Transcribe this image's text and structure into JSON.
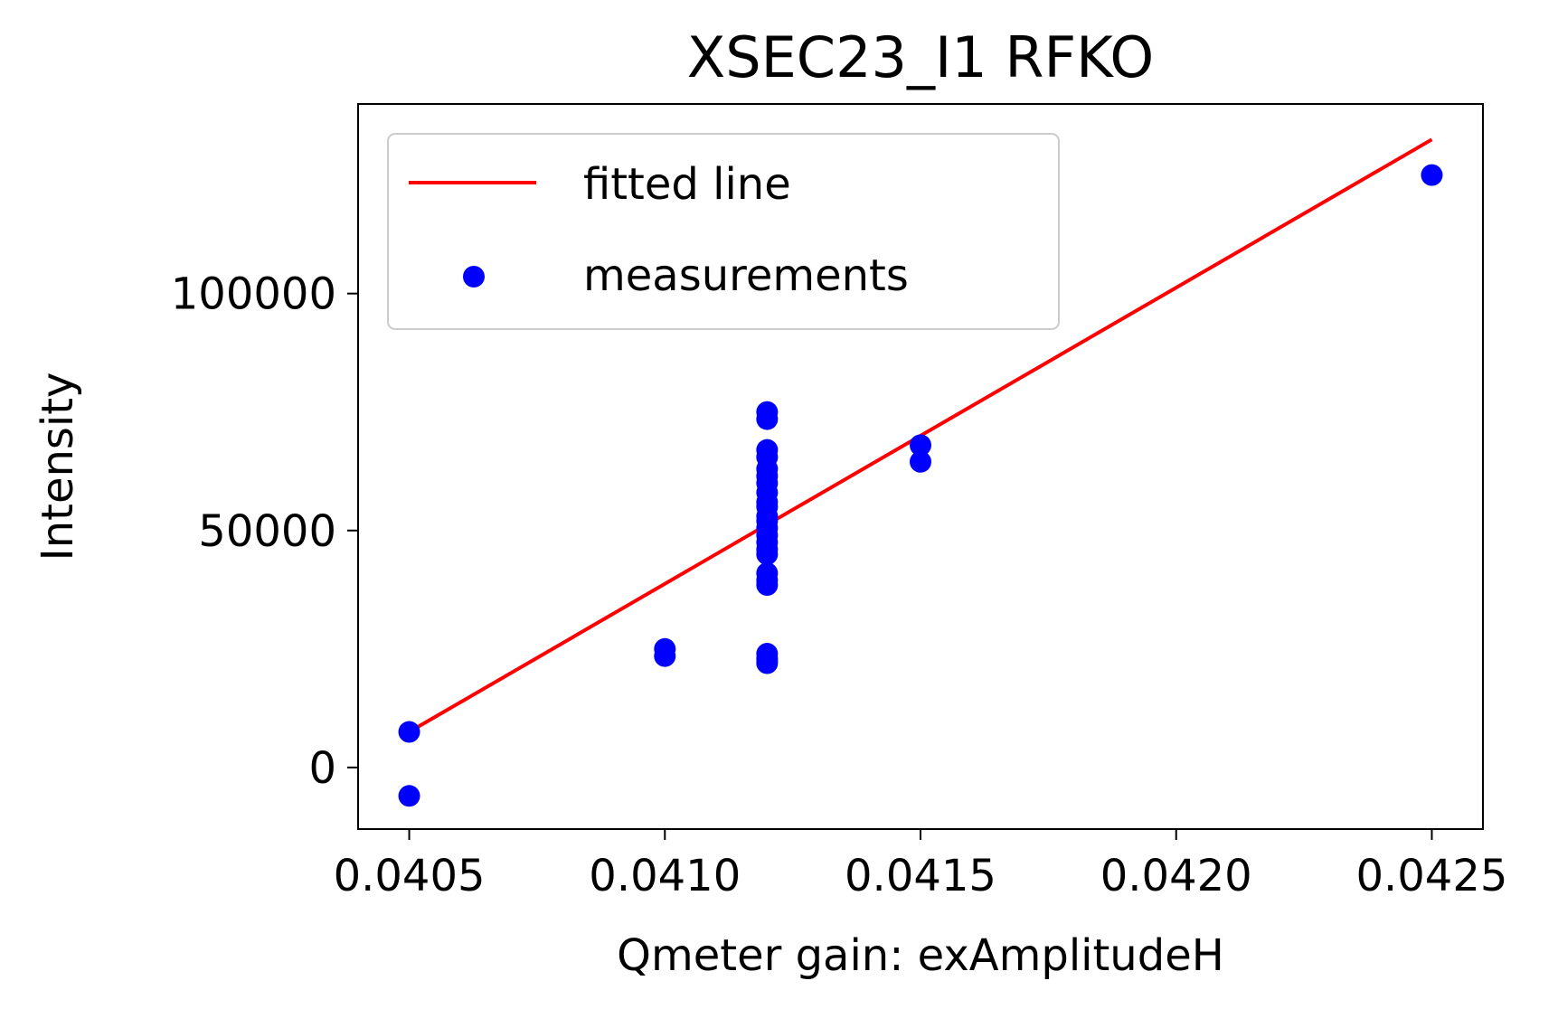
{
  "chart_data": {
    "type": "scatter",
    "title": "XSEC23_I1 RFKO",
    "xlabel": "Qmeter gain: exAmplitudeH",
    "ylabel": "Intensity",
    "xlim": [
      0.0404,
      0.0426
    ],
    "ylim": [
      -13000,
      140000
    ],
    "x_ticks": [
      {
        "value": 0.0405,
        "label": "0.0405"
      },
      {
        "value": 0.041,
        "label": "0.0410"
      },
      {
        "value": 0.0415,
        "label": "0.0415"
      },
      {
        "value": 0.042,
        "label": "0.0420"
      },
      {
        "value": 0.0425,
        "label": "0.0425"
      }
    ],
    "y_ticks": [
      {
        "value": 0,
        "label": "0"
      },
      {
        "value": 50000,
        "label": "50000"
      },
      {
        "value": 100000,
        "label": "100000"
      }
    ],
    "grid": false,
    "legend_position": "top-left",
    "series": [
      {
        "name": "fitted line",
        "kind": "line",
        "color": "#ff0000",
        "x": [
          0.0405,
          0.0425
        ],
        "y": [
          7500,
          132500
        ]
      },
      {
        "name": "measurements",
        "kind": "scatter",
        "color": "#0000ff",
        "x": [
          0.0405,
          0.0405,
          0.041,
          0.041,
          0.0412,
          0.0412,
          0.0412,
          0.0412,
          0.0412,
          0.0412,
          0.0412,
          0.0412,
          0.0412,
          0.0412,
          0.0412,
          0.0412,
          0.0412,
          0.0412,
          0.0412,
          0.0412,
          0.0412,
          0.0412,
          0.0412,
          0.0412,
          0.0412,
          0.0412,
          0.0412,
          0.0412,
          0.0415,
          0.0415,
          0.0425
        ],
        "y": [
          7500,
          -6000,
          25000,
          23500,
          73500,
          75000,
          67000,
          65500,
          63000,
          61500,
          60000,
          58000,
          56000,
          55000,
          53000,
          52000,
          50500,
          49000,
          47500,
          46000,
          45000,
          41000,
          39500,
          38500,
          24000,
          23000,
          22500,
          22000,
          68000,
          64500,
          125000
        ]
      }
    ]
  }
}
